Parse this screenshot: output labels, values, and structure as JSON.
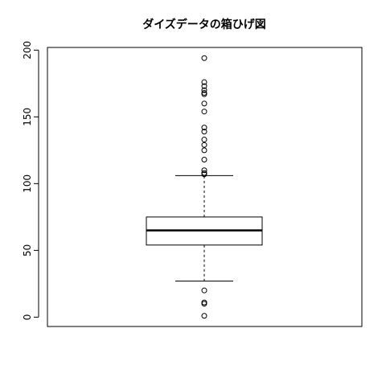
{
  "chart_data": {
    "type": "boxplot",
    "title": "ダイズデータの箱ひげ図",
    "xlabel": "",
    "ylabel": "",
    "ylim": [
      -7,
      202
    ],
    "yticks": [
      0,
      50,
      100,
      150,
      200
    ],
    "grid": false,
    "legend": "none",
    "box": {
      "q1": 54,
      "median": 65,
      "q3": 75,
      "whisker_low": 27,
      "whisker_high": 106
    },
    "outliers": [
      194,
      176,
      173,
      170,
      168,
      167,
      160,
      154,
      142,
      139,
      133,
      129,
      125,
      118,
      110,
      108,
      107,
      20,
      11,
      10,
      1
    ]
  }
}
